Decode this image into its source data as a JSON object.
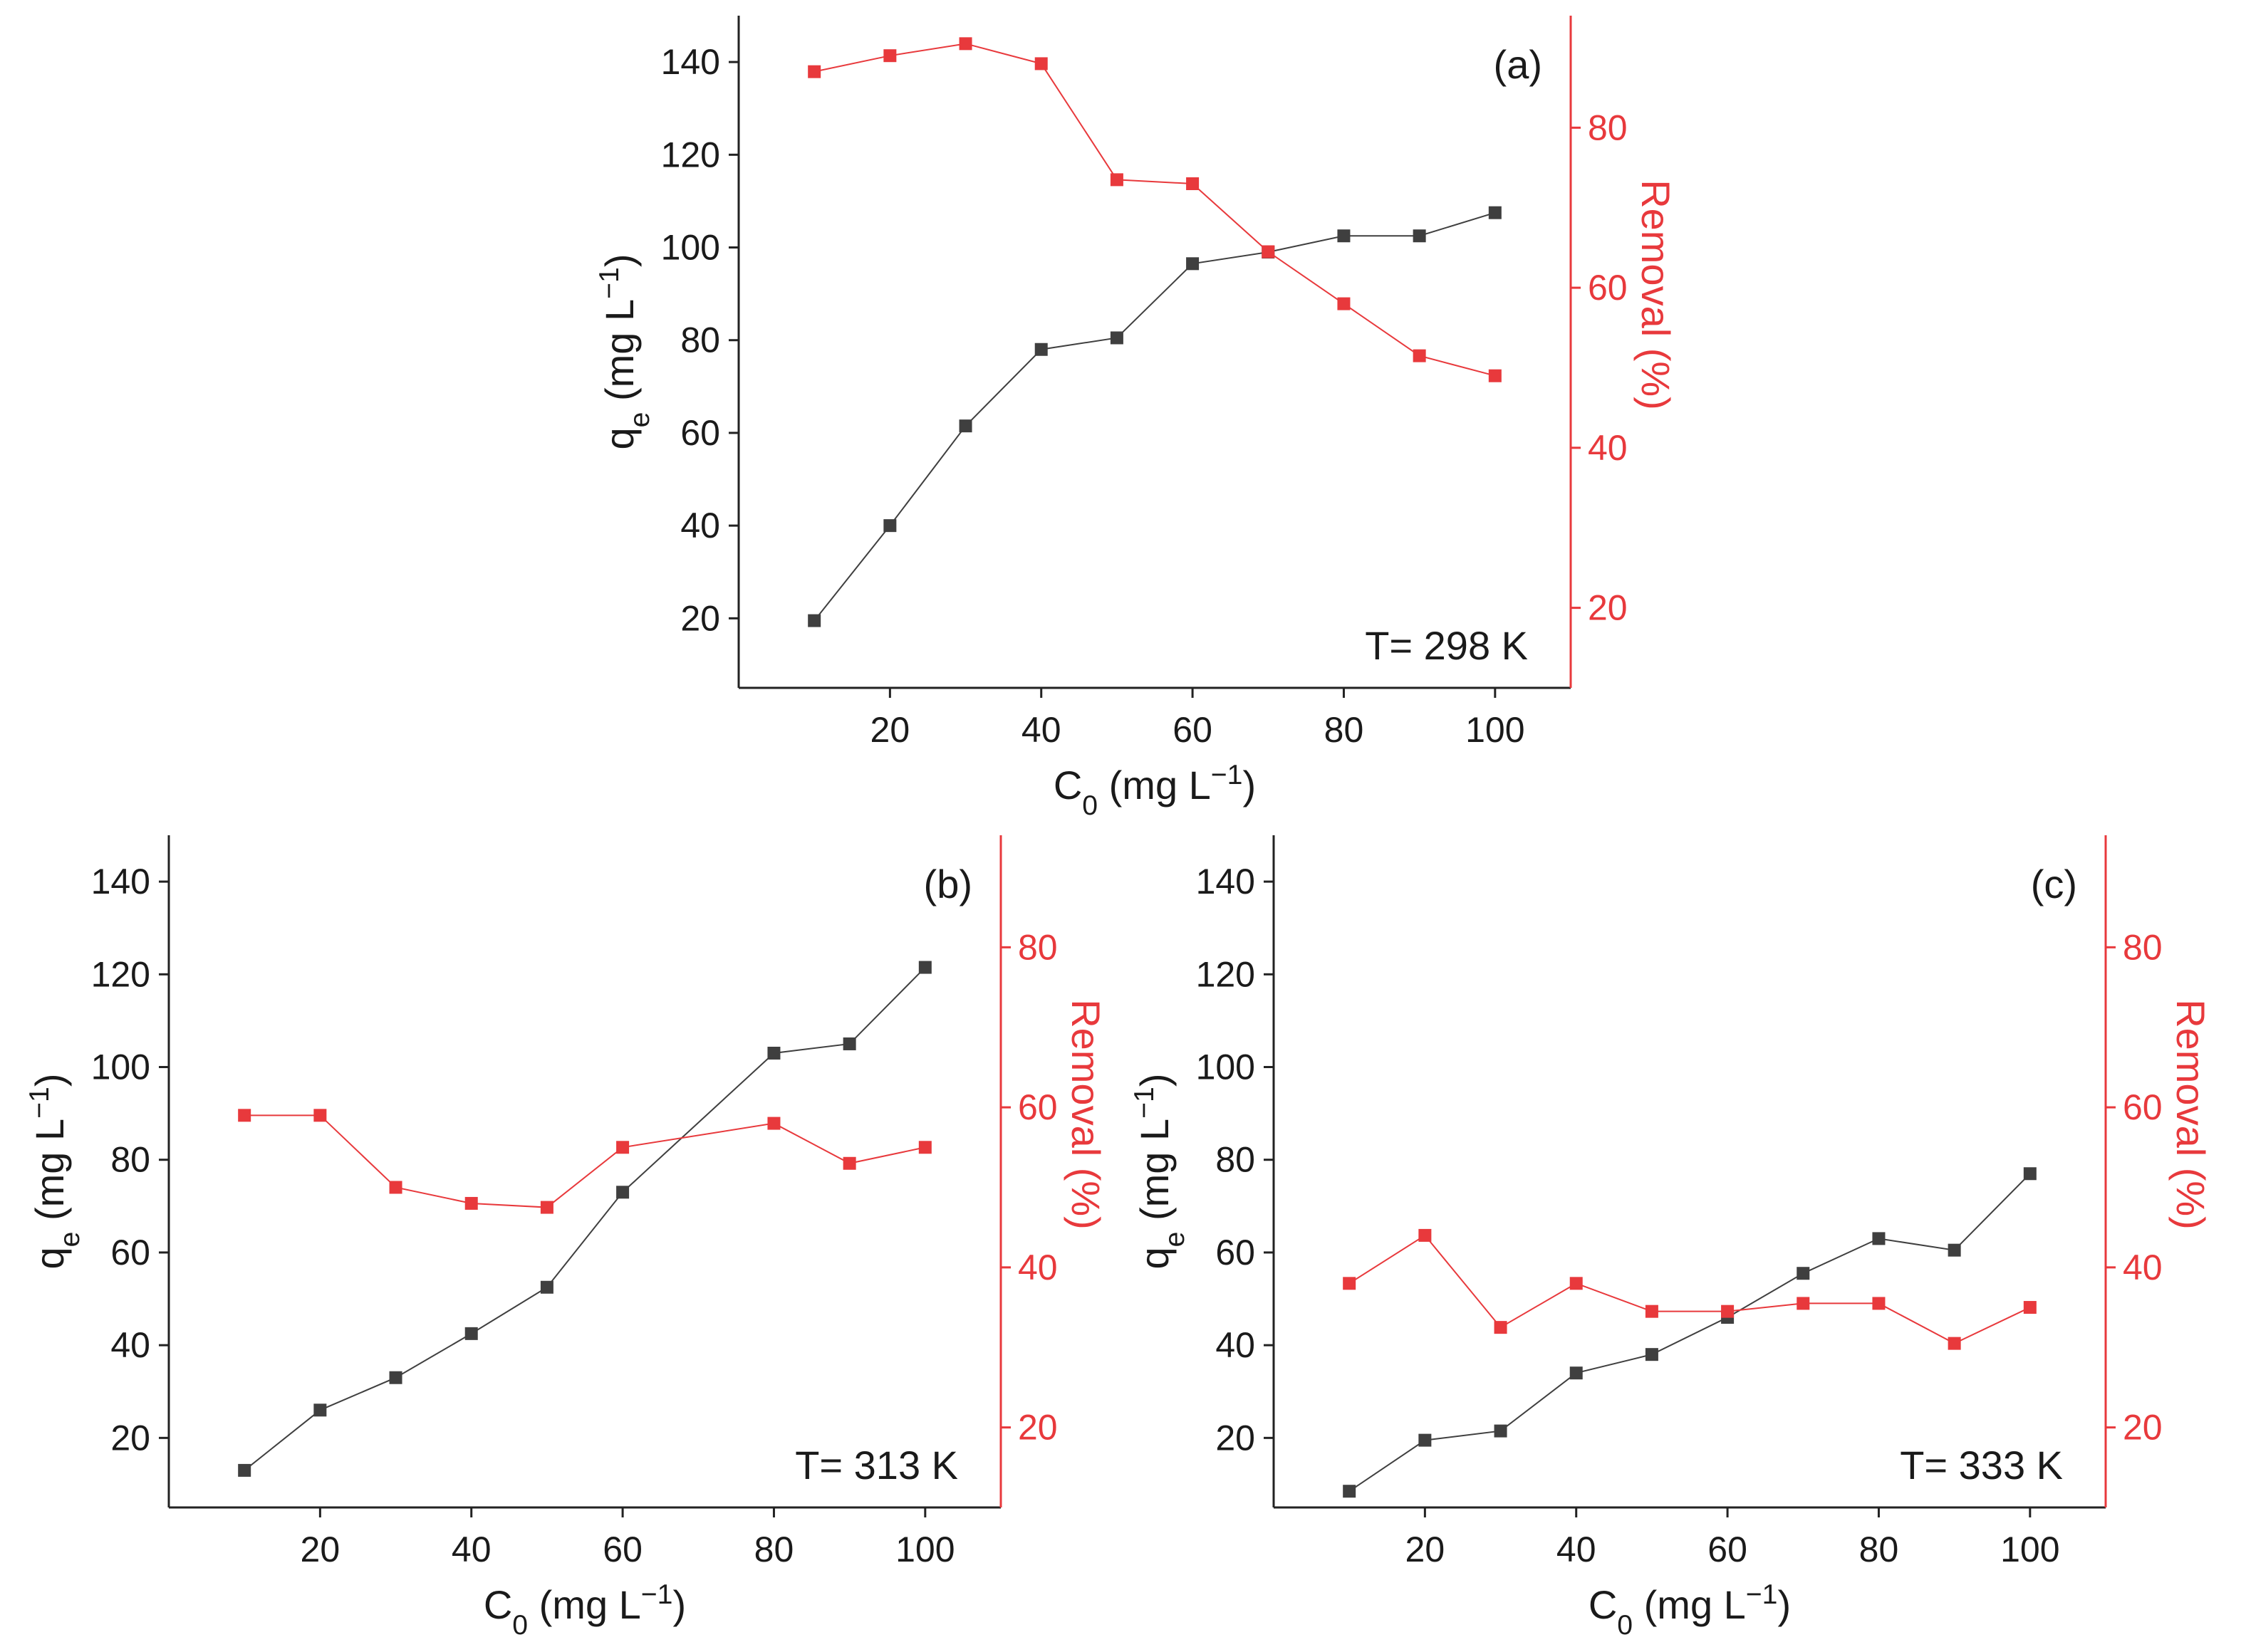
{
  "colors": {
    "qe": "#3f3f3f",
    "removal": "#e8393c",
    "axis": "#222222"
  },
  "chart_data": [
    {
      "type": "line",
      "panel": "(a)",
      "temperature": "T= 298 K",
      "xlabel": "C0 (mg L−1)",
      "ylabel_left": "qe (mg L−1)",
      "ylabel_right": "Removal (%)",
      "x": [
        10,
        20,
        30,
        40,
        50,
        60,
        70,
        80,
        90,
        100
      ],
      "x_ticks": [
        20,
        40,
        60,
        80,
        100
      ],
      "y_left_ticks": [
        20,
        40,
        60,
        80,
        100,
        120,
        140
      ],
      "y_right_ticks": [
        20,
        40,
        60,
        80
      ],
      "xlim": [
        0,
        110
      ],
      "ylim_left": [
        5,
        150
      ],
      "ylim_right": [
        10,
        94
      ],
      "series": [
        {
          "name": "qe",
          "axis": "left",
          "values": [
            19.5,
            40,
            61.5,
            78,
            80.5,
            96.5,
            99,
            102.5,
            102.5,
            107.5
          ]
        },
        {
          "name": "Removal",
          "axis": "right",
          "values": [
            87,
            89,
            90.5,
            88,
            73.5,
            73,
            64.5,
            58,
            51.5,
            49
          ]
        }
      ]
    },
    {
      "type": "line",
      "panel": "(b)",
      "temperature": "T= 313 K",
      "xlabel": "C0 (mg L−1)",
      "ylabel_left": "qe (mg L−1)",
      "ylabel_right": "Removal (%)",
      "x": [
        10,
        20,
        30,
        40,
        50,
        60,
        80,
        90,
        100
      ],
      "x_ticks": [
        20,
        40,
        60,
        80,
        100
      ],
      "y_left_ticks": [
        20,
        40,
        60,
        80,
        100,
        120,
        140
      ],
      "y_right_ticks": [
        20,
        40,
        60,
        80
      ],
      "xlim": [
        0,
        110
      ],
      "ylim_left": [
        5,
        150
      ],
      "ylim_right": [
        10,
        94
      ],
      "series": [
        {
          "name": "qe",
          "axis": "left",
          "values": [
            13,
            26,
            33,
            42.5,
            52.5,
            73,
            103,
            105,
            121.5
          ]
        },
        {
          "name": "Removal",
          "axis": "right",
          "values": [
            59,
            59,
            50,
            48,
            47.5,
            55,
            58,
            53,
            55
          ]
        }
      ]
    },
    {
      "type": "line",
      "panel": "(c)",
      "temperature": "T= 333 K",
      "xlabel": "C0 (mg L−1)",
      "ylabel_left": "qe (mg L−1)",
      "ylabel_right": "Removal (%)",
      "x": [
        10,
        20,
        30,
        40,
        50,
        60,
        70,
        80,
        90,
        100
      ],
      "x_ticks": [
        20,
        40,
        60,
        80,
        100
      ],
      "y_left_ticks": [
        20,
        40,
        60,
        80,
        100,
        120,
        140
      ],
      "y_right_ticks": [
        20,
        40,
        60,
        80
      ],
      "xlim": [
        0,
        110
      ],
      "ylim_left": [
        5,
        150
      ],
      "ylim_right": [
        10,
        94
      ],
      "series": [
        {
          "name": "qe",
          "axis": "left",
          "values": [
            8.5,
            19.5,
            21.5,
            34,
            38,
            46,
            55.5,
            63,
            60.5,
            77
          ]
        },
        {
          "name": "Removal",
          "axis": "right",
          "values": [
            38,
            44,
            32.5,
            38,
            34.5,
            34.5,
            35.5,
            35.5,
            30.5,
            35
          ]
        }
      ]
    }
  ]
}
